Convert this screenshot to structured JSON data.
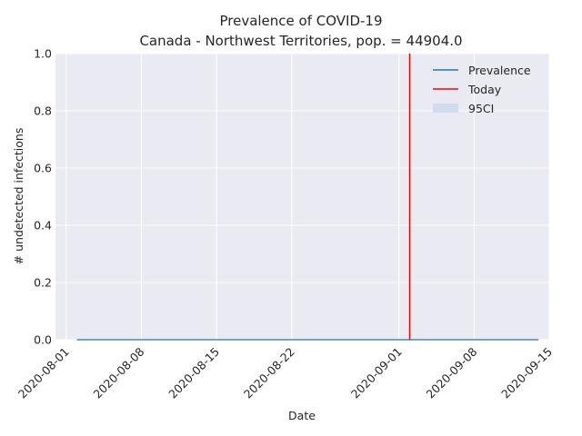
{
  "chart_data": {
    "type": "line",
    "title": "Prevalence of COVID-19",
    "subtitle": "Canada - Northwest Territories, pop. = 44904.0",
    "xlabel": "Date",
    "ylabel": "# undetected infections",
    "x_range": [
      "2020-07-31",
      "2020-09-15"
    ],
    "ylim": [
      0.0,
      1.0
    ],
    "x_ticks": [
      "2020-08-01",
      "2020-08-08",
      "2020-08-15",
      "2020-08-22",
      "2020-09-01",
      "2020-09-08",
      "2020-09-15"
    ],
    "y_ticks": [
      "0.0",
      "0.2",
      "0.4",
      "0.6",
      "0.8",
      "1.0"
    ],
    "grid": true,
    "legend_position": "top-right",
    "series": [
      {
        "name": "Prevalence",
        "color": "#1f77b4",
        "x_start": "2020-08-02",
        "x_end": "2020-09-14",
        "y": 0.0
      },
      {
        "name": "Today",
        "color": "#ff0000",
        "x": "2020-09-02"
      },
      {
        "name": "95CI",
        "color": "#c9d8e8",
        "lower": 0.0,
        "upper": 0.0
      }
    ]
  }
}
